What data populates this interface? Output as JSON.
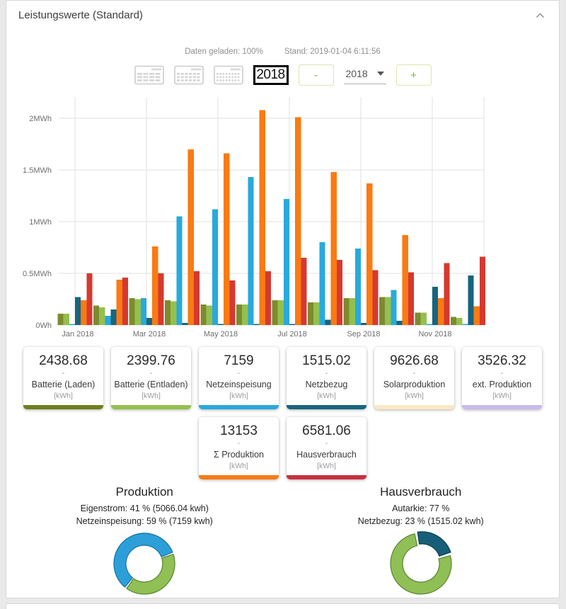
{
  "panel": {
    "title": "Leistungswerte (Standard)",
    "collapse_icon": "chevron-up-icon"
  },
  "status": {
    "loaded": "Daten geladen: 100%",
    "stand": "Stand: 2019-01-04 6:11:56"
  },
  "controls": {
    "view_buttons": [
      {
        "name": "view-day",
        "icon": "calendar-day-icon",
        "density": 4
      },
      {
        "name": "view-month",
        "icon": "calendar-month-icon",
        "density": 6
      },
      {
        "name": "view-months",
        "icon": "calendar-multi-month-icon",
        "density": 8
      }
    ],
    "year_view_label": "2018",
    "minus_label": "-",
    "plus_label": "+",
    "year_selected": "2018"
  },
  "chart_data": {
    "type": "bar",
    "title": "",
    "xlabel": "",
    "ylabel": "",
    "unit": "MWh",
    "ylim": [
      0,
      2.2
    ],
    "grid": true,
    "yticks": [
      {
        "v": 0,
        "label": "0Wh"
      },
      {
        "v": 0.5,
        "label": "0.5MWh"
      },
      {
        "v": 1,
        "label": "1MWh"
      },
      {
        "v": 1.5,
        "label": "1.5MWh"
      },
      {
        "v": 2,
        "label": "2MWh"
      }
    ],
    "tick_labels": [
      "Jan 2018",
      "Mar 2018",
      "May 2018",
      "Jul 2018",
      "Sep 2018",
      "Nov 2018"
    ],
    "tick_month_indices": [
      0,
      2,
      4,
      6,
      8,
      10
    ],
    "series": [
      {
        "name": "Batterie (Laden)",
        "color": "#7d8b2f",
        "values": [
          0.11,
          0.19,
          0.26,
          0.24,
          0.2,
          0.2,
          0.24,
          0.22,
          0.26,
          0.27,
          0.12,
          0.08
        ]
      },
      {
        "name": "Batterie (Entladen)",
        "color": "#94c04d",
        "values": [
          0.11,
          0.17,
          0.25,
          0.23,
          0.19,
          0.2,
          0.24,
          0.22,
          0.26,
          0.27,
          0.12,
          0.07
        ]
      },
      {
        "name": "Netzeinspeisung",
        "color": "#29a9dd",
        "values": [
          0.01,
          0.09,
          0.26,
          1.05,
          1.12,
          1.43,
          1.22,
          0.8,
          0.74,
          0.34,
          0.01,
          0.01
        ]
      },
      {
        "name": "Netzbezug",
        "color": "#17657f",
        "values": [
          0.27,
          0.15,
          0.07,
          0.02,
          0.01,
          0.01,
          0.01,
          0.05,
          0.02,
          0.04,
          0.37,
          0.48
        ]
      },
      {
        "name": "Σ Produktion",
        "color": "#fb7a12",
        "values": [
          0.24,
          0.44,
          0.76,
          1.7,
          1.66,
          2.08,
          2.01,
          1.48,
          1.37,
          0.87,
          0.26,
          0.18
        ]
      },
      {
        "name": "Hausverbrauch",
        "color": "#d5392f",
        "values": [
          0.5,
          0.46,
          0.5,
          0.52,
          0.43,
          0.52,
          0.65,
          0.63,
          0.53,
          0.51,
          0.6,
          0.66
        ]
      }
    ]
  },
  "cards": {
    "row1": [
      {
        "value": "2438.68",
        "dash": "-",
        "label": "Batterie (Laden)",
        "unit": "[kWh]",
        "color": "#6f7f1e"
      },
      {
        "value": "2399.76",
        "dash": "-",
        "label": "Batterie (Entladen)",
        "unit": "[kWh]",
        "color": "#93c04c"
      },
      {
        "value": "7159",
        "dash": "-",
        "label": "Netzeinspeisung",
        "unit": "[kWh]",
        "color": "#29a9dd"
      },
      {
        "value": "1515.02",
        "dash": "-",
        "label": "Netzbezug",
        "unit": "[kWh]",
        "color": "#17657f"
      },
      {
        "value": "9626.68",
        "dash": "-",
        "label": "Solarproduktion",
        "unit": "[kWh]",
        "color": "#fbe8c3"
      },
      {
        "value": "3526.32",
        "dash": "-",
        "label": "ext. Produktion",
        "unit": "[kWh]",
        "color": "#c9baea"
      }
    ],
    "row2": [
      {
        "value": "13153",
        "dash": "-",
        "label": "Σ Produktion",
        "unit": "[kWh]",
        "color": "#fb7a12"
      },
      {
        "value": "6581.06",
        "dash": "-",
        "label": "Hausverbrauch",
        "unit": "[kWh]",
        "color": "#c93040"
      }
    ]
  },
  "donuts": [
    {
      "title": "Produktion",
      "line1": "Eigenstrom: 41 % (5066.04 kwh)",
      "line2": "Netzeinspeisung: 59 % (7159 kwh)",
      "start_angle": 70,
      "segments": [
        {
          "label": "Eigenstrom",
          "pct": 41,
          "color": "#90bf55",
          "stroke": "#5d8a30"
        },
        {
          "label": "Netzeinspeisung",
          "pct": 59,
          "color": "#2d9fd8",
          "stroke": "#1b76a8"
        }
      ]
    },
    {
      "title": "Hausverbrauch",
      "line1": "Autarkie: 77 %",
      "line2": "Netzbezug: 23 % (1515.02 kwh)",
      "start_angle": -10,
      "segments": [
        {
          "label": "Netzbezug",
          "pct": 23,
          "color": "#175f78",
          "stroke": "#0e4253",
          "offset": true
        },
        {
          "label": "Autarkie",
          "pct": 77,
          "color": "#90bf55",
          "stroke": "#5d8a30"
        }
      ]
    }
  ]
}
